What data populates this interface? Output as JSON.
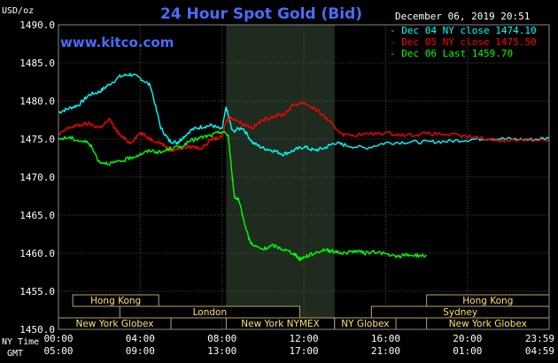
{
  "chart_data": {
    "type": "line",
    "title": "24 Hour Spot Gold (Bid)",
    "y_unit": "USD/oz",
    "date_time": "December 06, 2019 20:51",
    "website": "www.kitco.com",
    "ylim": [
      1450.0,
      1490.0
    ],
    "y_ticks": [
      "1490.0",
      "1485.0",
      "1480.0",
      "1475.0",
      "1470.0",
      "1465.0",
      "1460.0",
      "1455.0",
      "1450.0"
    ],
    "x_ticks_ny": [
      "00:00",
      "04:00",
      "08:00",
      "12:00",
      "16:00",
      "20:00",
      "23:59"
    ],
    "x_ticks_gmt": [
      "05:00",
      "09:00",
      "13:00",
      "17:00",
      "21:00",
      "01:00",
      "04:59"
    ],
    "x_label_ny": "NY Time",
    "x_label_gmt": "GMT",
    "legend": [
      {
        "label": "Dec 04 NY close 1474.10",
        "color": "#00ffff"
      },
      {
        "label": "Dec 05 NY close 1475.50",
        "color": "#ff0000"
      },
      {
        "label": "Dec 06 Last 1459.70",
        "color": "#00ff00"
      }
    ],
    "series": [
      {
        "name": "Dec 04",
        "color": "#00ffff",
        "x": [
          0.0,
          0.5,
          1.0,
          1.5,
          2.0,
          2.4,
          3.0,
          3.5,
          4.0,
          4.5,
          5.0,
          5.4,
          5.8,
          6.0,
          6.5,
          7.0,
          7.5,
          8.0,
          8.2,
          8.5,
          9.0,
          9.5,
          10.0,
          10.5,
          11.0,
          11.5,
          12.0,
          12.5,
          13.0,
          13.5,
          14.0,
          15.0,
          16.0,
          17.0,
          18.0,
          19.0,
          20.0,
          21.0,
          22.0,
          23.0,
          23.99
        ],
        "y": [
          1478.5,
          1479.0,
          1479.5,
          1480.8,
          1481.2,
          1482.0,
          1483.2,
          1483.5,
          1483.0,
          1482.0,
          1476.5,
          1474.8,
          1474.5,
          1475.0,
          1476.2,
          1476.6,
          1476.8,
          1476.2,
          1479.2,
          1476.0,
          1476.5,
          1474.5,
          1473.8,
          1473.5,
          1473.0,
          1473.5,
          1474.0,
          1473.5,
          1473.8,
          1474.5,
          1474.2,
          1473.8,
          1474.5,
          1474.6,
          1474.6,
          1474.7,
          1474.9,
          1475.1,
          1475.0,
          1474.9,
          1475.1
        ]
      },
      {
        "name": "Dec 05",
        "color": "#ff0000",
        "x": [
          0.0,
          0.5,
          1.0,
          1.5,
          2.0,
          2.5,
          3.0,
          3.5,
          4.0,
          4.5,
          5.0,
          5.5,
          6.0,
          6.5,
          7.0,
          7.5,
          8.0,
          8.2,
          8.5,
          9.0,
          9.5,
          10.0,
          10.5,
          11.0,
          11.5,
          12.0,
          12.5,
          13.0,
          13.5,
          14.0,
          15.0,
          16.0,
          17.0,
          18.0,
          19.0,
          20.0,
          21.0,
          22.0,
          23.0,
          23.99
        ],
        "y": [
          1475.5,
          1476.5,
          1476.8,
          1477.0,
          1476.5,
          1477.5,
          1475.5,
          1474.5,
          1475.8,
          1475.0,
          1474.5,
          1473.5,
          1473.8,
          1474.0,
          1473.8,
          1475.0,
          1475.2,
          1477.5,
          1477.8,
          1477.0,
          1476.5,
          1477.5,
          1478.0,
          1478.2,
          1479.5,
          1479.8,
          1479.0,
          1478.0,
          1476.5,
          1475.5,
          1475.6,
          1475.8,
          1475.5,
          1475.7,
          1475.6,
          1475.3,
          1475.0,
          1474.8,
          1475.0,
          1474.8
        ]
      },
      {
        "name": "Dec 06",
        "color": "#00ff00",
        "x": [
          0.0,
          0.5,
          1.0,
          1.5,
          2.0,
          2.5,
          3.0,
          3.5,
          4.0,
          4.5,
          5.0,
          5.5,
          6.0,
          6.5,
          7.0,
          7.5,
          8.0,
          8.3,
          8.5,
          8.6,
          8.8,
          9.0,
          9.3,
          9.5,
          10.0,
          10.5,
          11.0,
          11.5,
          11.8,
          12.0,
          12.5,
          13.0,
          13.5,
          14.0,
          14.5,
          15.0,
          15.5,
          16.0,
          16.5,
          17.0,
          17.5,
          18.0
        ],
        "y": [
          1475.0,
          1475.2,
          1474.8,
          1474.5,
          1472.0,
          1471.8,
          1472.0,
          1472.5,
          1473.0,
          1473.5,
          1473.2,
          1473.8,
          1474.0,
          1474.8,
          1475.2,
          1475.5,
          1476.0,
          1475.5,
          1470.0,
          1467.5,
          1467.0,
          1465.0,
          1462.0,
          1461.0,
          1460.5,
          1461.0,
          1460.5,
          1460.0,
          1459.2,
          1459.5,
          1460.0,
          1460.5,
          1460.2,
          1460.0,
          1460.3,
          1460.0,
          1460.2,
          1459.9,
          1459.5,
          1459.8,
          1459.7,
          1459.7
        ]
      }
    ],
    "shaded_region": {
      "label": "New York NYMEX",
      "start": 8.2,
      "end": 13.5
    },
    "sessions": [
      {
        "label": "Hong Kong",
        "start": 0.7,
        "end": 4.9,
        "row": 0
      },
      {
        "label": "Hong Kong",
        "start": 18.0,
        "end": 23.99,
        "row": 0
      },
      {
        "label": "London",
        "start": 3.0,
        "end": 11.8,
        "row": 1
      },
      {
        "label": "Sydney",
        "start": 15.3,
        "end": 23.99,
        "row": 1
      },
      {
        "label": "New York Globex",
        "start": 0.0,
        "end": 5.5,
        "row": 2
      },
      {
        "label": "New York NYMEX",
        "start": 8.2,
        "end": 13.5,
        "row": 2
      },
      {
        "label": "NY Globex",
        "start": 13.5,
        "end": 16.5,
        "row": 2
      },
      {
        "label": "New York Globex",
        "start": 18.0,
        "end": 23.99,
        "row": 2
      }
    ]
  }
}
